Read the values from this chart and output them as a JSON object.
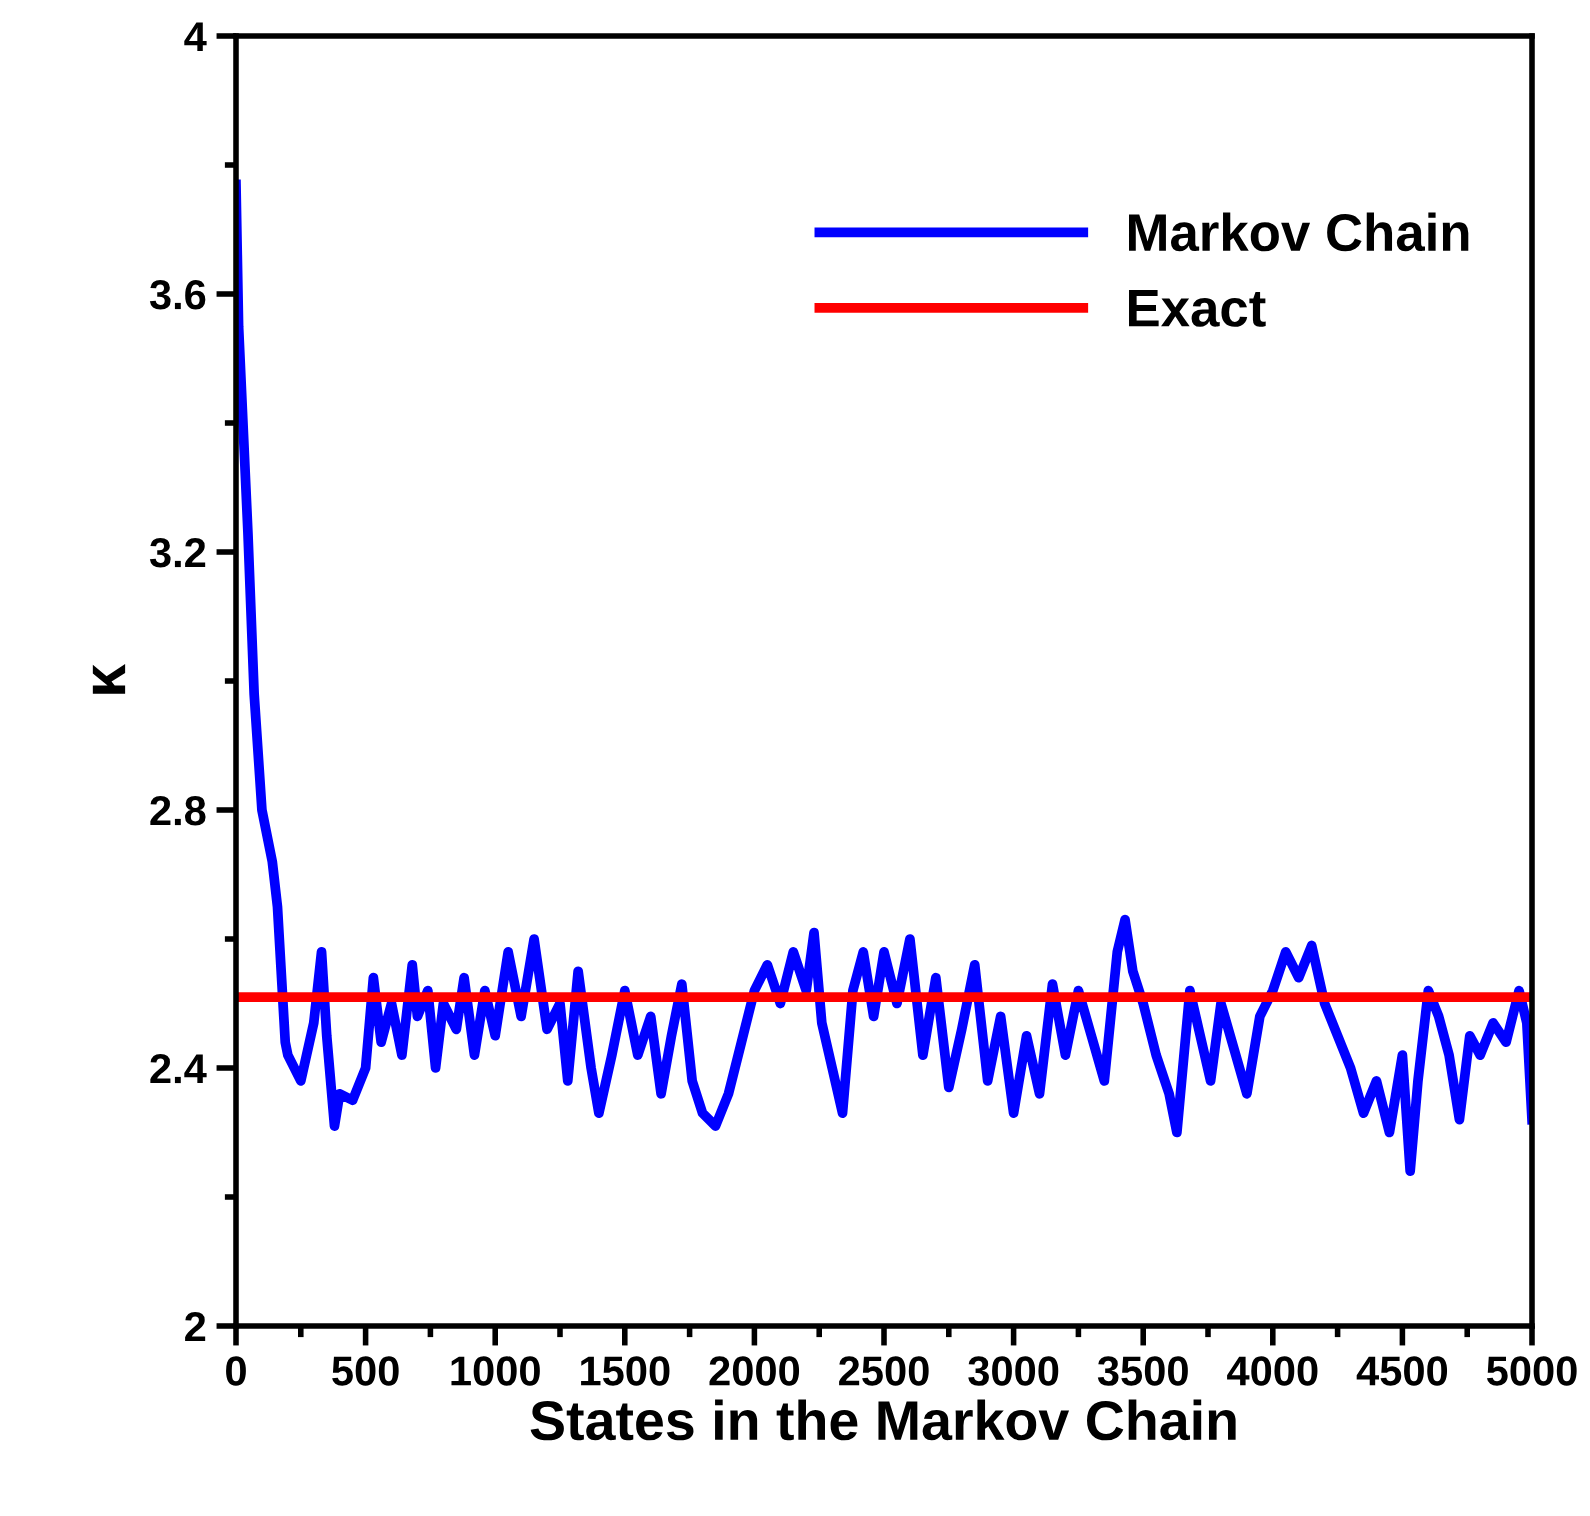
{
  "chart_data": {
    "type": "line",
    "xlabel": "States in the Markov Chain",
    "ylabel": "κ",
    "xlim": [
      0,
      5000
    ],
    "ylim": [
      2,
      4
    ],
    "xticks": [
      0,
      {
        "value": 250,
        "label": null
      },
      500,
      {
        "value": 750,
        "label": null
      },
      1000,
      {
        "value": 1250,
        "label": null
      },
      1500,
      {
        "value": 1750,
        "label": null
      },
      2000,
      {
        "value": 2250,
        "label": null
      },
      2500,
      {
        "value": 2750,
        "label": null
      },
      3000,
      {
        "value": 3250,
        "label": null
      },
      3500,
      {
        "value": 3750,
        "label": null
      },
      4000,
      {
        "value": 4250,
        "label": null
      },
      4500,
      {
        "value": 4750,
        "label": null
      },
      5000
    ],
    "yticks": [
      2,
      {
        "value": 2.2,
        "label": null
      },
      2.4,
      {
        "value": 2.6,
        "label": null
      },
      2.8,
      {
        "value": 3.0,
        "label": null
      },
      3.2,
      {
        "value": 3.4,
        "label": null
      },
      3.6,
      {
        "value": 3.8,
        "label": null
      },
      4
    ],
    "grid": false,
    "legend": "top right",
    "marker": "none",
    "line_style": "solid",
    "series": [
      {
        "name": "Markov Chain",
        "color": "#0000ff",
        "x": [
          0,
          10,
          46,
          70,
          100,
          140,
          160,
          190,
          200,
          250,
          300,
          330,
          350,
          380,
          400,
          450,
          500,
          530,
          560,
          600,
          640,
          680,
          700,
          740,
          770,
          800,
          850,
          880,
          920,
          960,
          1000,
          1050,
          1100,
          1150,
          1200,
          1250,
          1280,
          1320,
          1370,
          1400,
          1450,
          1500,
          1550,
          1600,
          1640,
          1680,
          1720,
          1760,
          1800,
          1850,
          1900,
          1950,
          2000,
          2050,
          2100,
          2150,
          2200,
          2230,
          2260,
          2300,
          2340,
          2380,
          2420,
          2460,
          2500,
          2550,
          2600,
          2650,
          2700,
          2750,
          2800,
          2850,
          2900,
          2950,
          3000,
          3050,
          3100,
          3150,
          3200,
          3250,
          3300,
          3350,
          3400,
          3430,
          3460,
          3500,
          3550,
          3600,
          3630,
          3680,
          3720,
          3760,
          3800,
          3850,
          3900,
          3950,
          4000,
          4050,
          4100,
          4150,
          4200,
          4250,
          4300,
          4350,
          4400,
          4450,
          4500,
          4530,
          4560,
          4600,
          4640,
          4680,
          4720,
          4760,
          4800,
          4850,
          4900,
          4950,
          4980,
          5000
        ],
        "values": [
          3.77,
          3.55,
          3.23,
          2.98,
          2.8,
          2.72,
          2.65,
          2.44,
          2.42,
          2.38,
          2.47,
          2.58,
          2.45,
          2.31,
          2.36,
          2.35,
          2.4,
          2.54,
          2.44,
          2.5,
          2.42,
          2.56,
          2.48,
          2.52,
          2.4,
          2.5,
          2.46,
          2.54,
          2.42,
          2.52,
          2.45,
          2.58,
          2.48,
          2.6,
          2.46,
          2.5,
          2.38,
          2.55,
          2.4,
          2.33,
          2.42,
          2.52,
          2.42,
          2.48,
          2.36,
          2.45,
          2.53,
          2.38,
          2.33,
          2.31,
          2.36,
          2.44,
          2.52,
          2.56,
          2.5,
          2.58,
          2.52,
          2.61,
          2.47,
          2.4,
          2.33,
          2.52,
          2.58,
          2.48,
          2.58,
          2.5,
          2.6,
          2.42,
          2.54,
          2.37,
          2.46,
          2.56,
          2.38,
          2.48,
          2.33,
          2.45,
          2.36,
          2.53,
          2.42,
          2.52,
          2.45,
          2.38,
          2.58,
          2.63,
          2.55,
          2.5,
          2.42,
          2.36,
          2.3,
          2.52,
          2.45,
          2.38,
          2.5,
          2.43,
          2.36,
          2.48,
          2.52,
          2.58,
          2.54,
          2.59,
          2.5,
          2.45,
          2.4,
          2.33,
          2.38,
          2.3,
          2.42,
          2.24,
          2.38,
          2.52,
          2.48,
          2.42,
          2.32,
          2.45,
          2.42,
          2.47,
          2.44,
          2.52,
          2.47,
          2.32
        ]
      },
      {
        "name": "Exact",
        "color": "#ff0000",
        "x": [
          0,
          5000
        ],
        "values": [
          2.51,
          2.51
        ]
      }
    ]
  }
}
